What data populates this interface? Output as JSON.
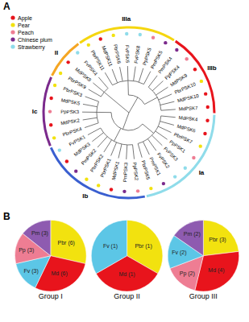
{
  "panel_labels": [
    "A",
    "B"
  ],
  "tree": {
    "legend": [
      {
        "name": "Apple",
        "color": "#e8141c"
      },
      {
        "name": "Pear",
        "color": "#f2e20f"
      },
      {
        "name": "Peach",
        "color": "#ee7d93"
      },
      {
        "name": "Chinese plum",
        "color": "#7b2a8c"
      },
      {
        "name": "Strawberry",
        "color": "#8fdcea"
      }
    ],
    "branches": [
      {
        "clades": [
          {
            "label": "II",
            "color": "#f5a623",
            "leaves": [
              {
                "label": "PbrPSK9",
                "species": "Pear"
              },
              {
                "label": "MdPSK8",
                "species": "Apple"
              },
              {
                "label": "FvPSK4",
                "species": "Strawberry"
              }
            ]
          }
        ]
      },
      {
        "clades": [
          {
            "label": "IIIa",
            "color": "#f5d60f",
            "leaves": [
              {
                "label": "PbrPSK11",
                "species": "Pear"
              },
              {
                "label": "MdPSK11",
                "species": "Apple"
              },
              {
                "label": "PbrPSK6",
                "species": "Pear"
              },
              {
                "label": "FvPSK6",
                "species": "Strawberry"
              },
              {
                "label": "FvPSK8",
                "species": "Strawberry"
              },
              {
                "label": "PpPSK5",
                "species": "Peach"
              },
              {
                "label": "PmPSK5",
                "species": "Chinese plum"
              }
            ]
          },
          {
            "label": "IIIb",
            "color": "#e8141c",
            "leaves": [
              {
                "label": "PmPSK4",
                "species": "Chinese plum"
              },
              {
                "label": "PpPSK4",
                "species": "Peach"
              },
              {
                "label": "MdPSK9",
                "species": "Apple"
              },
              {
                "label": "PbrPSK10",
                "species": "Pear"
              },
              {
                "label": "MdPSK10",
                "species": "Apple"
              },
              {
                "label": "MdPSK7",
                "species": "Apple"
              }
            ]
          }
        ]
      },
      {
        "clades": [
          {
            "label": "Ia",
            "color": "#8fdcea",
            "leaves": [
              {
                "label": "MdPSK4",
                "species": "Apple"
              },
              {
                "label": "MdPSK6",
                "species": "Apple"
              },
              {
                "label": "PbrPSK7",
                "species": "Pear"
              },
              {
                "label": "PpPSK1",
                "species": "Peach"
              },
              {
                "label": "FvPSK3",
                "species": "Strawberry"
              },
              {
                "label": "FvPSK2",
                "species": "Strawberry"
              },
              {
                "label": "PmPSK1",
                "species": "Chinese plum"
              },
              {
                "label": "PbrPSK5",
                "species": "Pear"
              }
            ]
          },
          {
            "label": "Ib",
            "color": "#3a5fd0",
            "leaves": [
              {
                "label": "PpPSK2",
                "species": "Peach"
              },
              {
                "label": "PmPSK3",
                "species": "Chinese plum"
              },
              {
                "label": "MdPSK1",
                "species": "Apple"
              },
              {
                "label": "PbrPSK1",
                "species": "Pear"
              },
              {
                "label": "PbrPSK2",
                "species": "Pear"
              },
              {
                "label": "PmPSK2",
                "species": "Chinese plum"
              },
              {
                "label": "MdPSK3",
                "species": "Apple"
              },
              {
                "label": "FvPSK1",
                "species": "Strawberry"
              }
            ]
          },
          {
            "label": "Ic",
            "color": "#7b2a8c",
            "leaves": [
              {
                "label": "PbrPSK4",
                "species": "Pear"
              },
              {
                "label": "MdPSK2",
                "species": "Apple"
              },
              {
                "label": "PpPSK3",
                "species": "Peach"
              },
              {
                "label": "MdPSK5",
                "species": "Apple"
              },
              {
                "label": "PbrPSK3",
                "species": "Pear"
              }
            ]
          }
        ]
      }
    ]
  },
  "chart_data": [
    {
      "type": "pie",
      "title": "Group I",
      "categories": [
        "Pbr",
        "Md",
        "Fv",
        "Pp",
        "Pm"
      ],
      "values": [
        6,
        6,
        3,
        3,
        3
      ],
      "value_labels": [
        "Pbr (6)",
        "Md (6)",
        "Fv (3)",
        "Pp (3)",
        "Pm (3)"
      ],
      "colors": [
        "#f2e20f",
        "#e8141c",
        "#5cc6e6",
        "#ee7d93",
        "#8e5bb0"
      ]
    },
    {
      "type": "pie",
      "title": "Group II",
      "categories": [
        "Pbr",
        "Md",
        "Fv"
      ],
      "values": [
        1,
        1,
        1
      ],
      "value_labels": [
        "Pbr (1)",
        "Md (1)",
        "Fv (1)"
      ],
      "colors": [
        "#f2e20f",
        "#e8141c",
        "#5cc6e6"
      ]
    },
    {
      "type": "pie",
      "title": "Group III",
      "categories": [
        "Pbr",
        "Md",
        "Pp",
        "Fv",
        "Pm"
      ],
      "values": [
        3,
        4,
        2,
        2,
        2
      ],
      "value_labels": [
        "Pbr (3)",
        "Md (4)",
        "Pp (2)",
        "Fv (2)",
        "Pm (2)"
      ],
      "colors": [
        "#f2e20f",
        "#e8141c",
        "#ee7d93",
        "#5cc6e6",
        "#8e5bb0"
      ]
    }
  ]
}
